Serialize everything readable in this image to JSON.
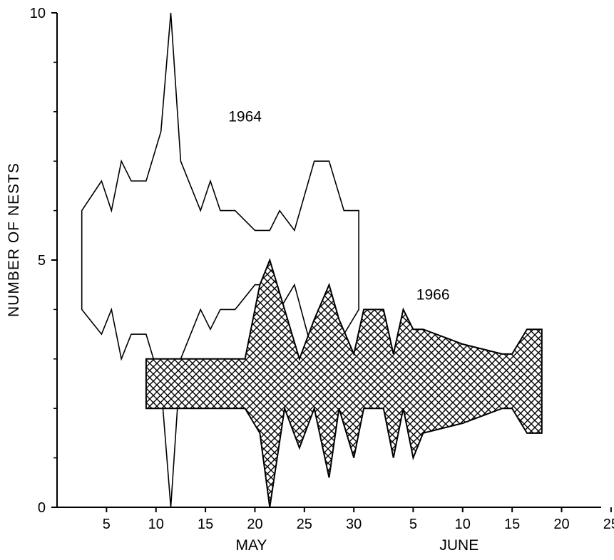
{
  "chart_data": {
    "type": "area",
    "title": "",
    "ylabel": "NUMBER OF NESTS",
    "ylim": [
      0,
      10
    ],
    "yticks": [
      0,
      5,
      10
    ],
    "xlim_days": [
      0,
      55
    ],
    "xticks": [
      {
        "day": 5,
        "label": "5"
      },
      {
        "day": 10,
        "label": "10"
      },
      {
        "day": 15,
        "label": "15"
      },
      {
        "day": 20,
        "label": "20"
      },
      {
        "day": 25,
        "label": "25"
      },
      {
        "day": 30,
        "label": "30"
      },
      {
        "day": 36,
        "label": "5"
      },
      {
        "day": 41,
        "label": "10"
      },
      {
        "day": 46,
        "label": "15"
      },
      {
        "day": 51,
        "label": "20"
      },
      {
        "day": 56,
        "label": "25"
      }
    ],
    "month_labels": [
      {
        "day": 20,
        "label": "MAY"
      },
      {
        "day": 41,
        "label": "JUNE"
      }
    ],
    "series": [
      {
        "name": "1964",
        "label_position": {
          "day": 19,
          "value": 7.8
        },
        "fill": "none",
        "x": [
          2.5,
          4.5,
          5.5,
          6.5,
          7.5,
          9,
          10.5,
          11.5,
          12.5,
          14.5,
          15.5,
          16.5,
          18,
          20,
          21.5,
          22.5,
          24,
          26,
          27.5,
          29,
          30.5
        ],
        "upper": [
          6,
          6.6,
          6,
          7,
          6.6,
          6.6,
          7.6,
          10,
          7,
          6,
          6.6,
          6,
          6,
          5.6,
          5.6,
          6,
          5.6,
          7,
          7,
          6,
          6
        ],
        "lower": [
          4,
          3.5,
          4,
          3,
          3.5,
          3.5,
          2.5,
          0,
          3,
          4,
          3.6,
          4,
          4,
          4.5,
          4.5,
          4,
          4.5,
          3,
          3,
          3.5,
          4
        ]
      },
      {
        "name": "1966",
        "label_position": {
          "day": 38,
          "value": 4.2
        },
        "fill": "crosshatch",
        "x": [
          9,
          11,
          13,
          15,
          17,
          19,
          20.5,
          21.5,
          23,
          24.5,
          26,
          27.5,
          28.5,
          30,
          31,
          33,
          34,
          35,
          36,
          37,
          41,
          45,
          46,
          47.5,
          49
        ],
        "upper": [
          3,
          3,
          3,
          3,
          3,
          3,
          4.5,
          5,
          4,
          3,
          3.8,
          4.5,
          3.8,
          3.1,
          4,
          4,
          3.1,
          4,
          3.6,
          3.6,
          3.3,
          3.1,
          3.1,
          3.6,
          3.6
        ],
        "lower": [
          2,
          2,
          2,
          2,
          2,
          2,
          1.5,
          0,
          2,
          1.2,
          2,
          0.6,
          2,
          1,
          2,
          2,
          1,
          2,
          1,
          1.5,
          1.7,
          2,
          2,
          1.5,
          1.5
        ]
      }
    ]
  }
}
